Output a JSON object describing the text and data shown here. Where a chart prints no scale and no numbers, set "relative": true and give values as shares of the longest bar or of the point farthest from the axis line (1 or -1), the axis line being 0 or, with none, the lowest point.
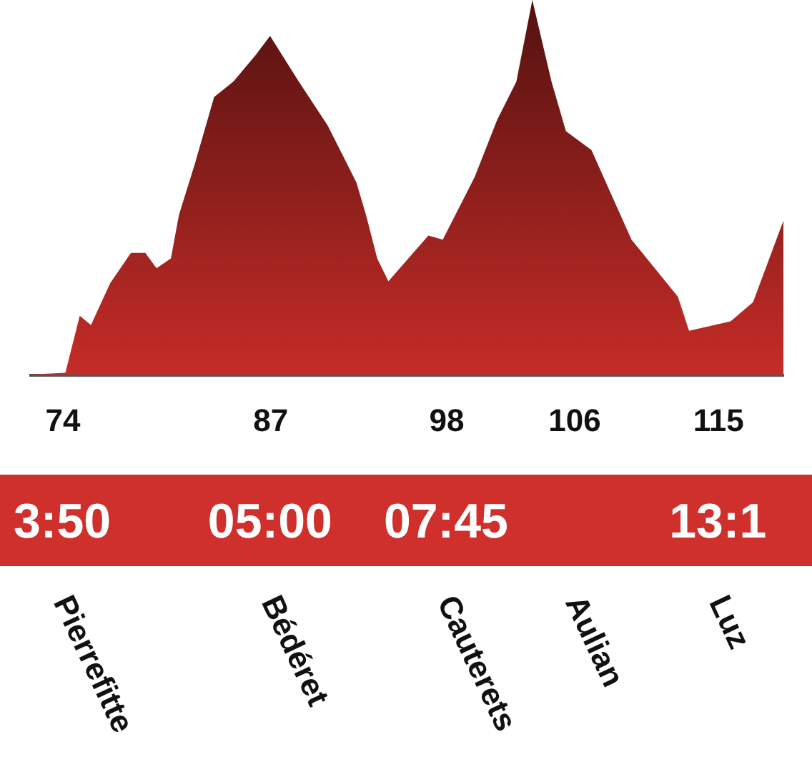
{
  "chart_data": {
    "type": "area",
    "relative": true,
    "color": "#c62c28",
    "x": [
      71.9,
      74.2,
      75.1,
      75.8,
      77.0,
      78.3,
      79.2,
      79.9,
      80.8,
      81.3,
      82.3,
      83.5,
      84.7,
      86.1,
      87.0,
      88.8,
      90.6,
      92.4,
      93.0,
      93.7,
      94.4,
      96.9,
      97.8,
      99.8,
      101.2,
      102.4,
      103.4,
      104.6,
      105.5,
      107.1,
      109.6,
      112.5,
      113.2,
      115.8,
      117.2,
      119.1
    ],
    "values": [
      0,
      0.005,
      0.157,
      0.132,
      0.244,
      0.325,
      0.325,
      0.284,
      0.31,
      0.426,
      0.563,
      0.741,
      0.782,
      0.853,
      0.904,
      0.782,
      0.665,
      0.513,
      0.426,
      0.31,
      0.249,
      0.371,
      0.36,
      0.528,
      0.68,
      0.782,
      1.0,
      0.782,
      0.65,
      0.599,
      0.36,
      0.208,
      0.117,
      0.142,
      0.193,
      0.411
    ],
    "xlim": [
      71.9,
      119.1
    ],
    "xticks": [
      74,
      87,
      98,
      106,
      115
    ],
    "grid": false,
    "annotations": [
      "3:50",
      "05:00",
      "07:45",
      "13:1",
      "Pierrefitte",
      "Bédéret",
      "Cauterets",
      "Aulian",
      "Luz"
    ]
  }
}
